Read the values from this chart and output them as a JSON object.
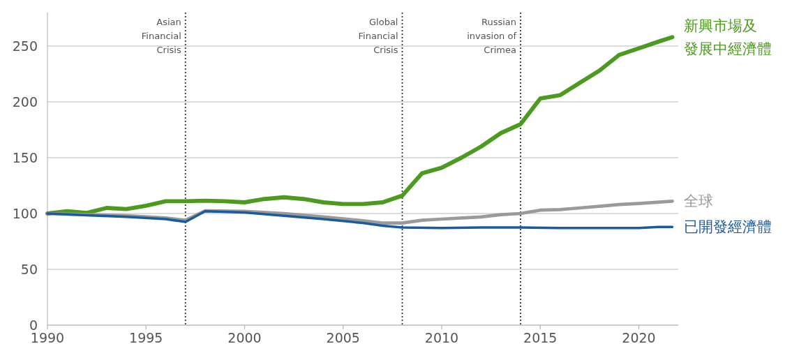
{
  "chart_data": {
    "type": "line",
    "xlim": [
      1990,
      2022
    ],
    "ylim": [
      0,
      280
    ],
    "xticks": [
      1990,
      1995,
      2000,
      2005,
      2010,
      2015,
      2020
    ],
    "yticks": [
      0,
      50,
      100,
      150,
      200,
      250
    ],
    "grid": "y",
    "line_style": "solid",
    "series": [
      {
        "name": "新興市場及發展中經濟體",
        "color": "#4c9a1f",
        "x": [
          1990,
          1991,
          1992,
          1993,
          1994,
          1995,
          1996,
          1997,
          1998,
          1999,
          2000,
          2001,
          2002,
          2003,
          2004,
          2005,
          2006,
          2007,
          2008,
          2009,
          2010,
          2011,
          2012,
          2013,
          2014,
          2015,
          2016,
          2017,
          2018,
          2019,
          2020,
          2021,
          2021.7
        ],
        "values": [
          100,
          102,
          100.5,
          105,
          104,
          107,
          111,
          111,
          111.5,
          111,
          110,
          113,
          114.5,
          113,
          110,
          108.5,
          108.5,
          110,
          116,
          136,
          141,
          150,
          160,
          172,
          180,
          203,
          206,
          217,
          228,
          242,
          248,
          254,
          258
        ]
      },
      {
        "name": "全球",
        "color": "#9a9a9a",
        "x": [
          1990,
          1992,
          1994,
          1996,
          1997,
          1998,
          2000,
          2002,
          2004,
          2006,
          2007,
          2008,
          2009,
          2010,
          2012,
          2013,
          2014,
          2015,
          2016,
          2017,
          2018,
          2019,
          2020,
          2021.7
        ],
        "values": [
          100,
          99,
          98,
          96,
          94,
          102.5,
          102,
          100,
          97,
          93.5,
          91.5,
          91.5,
          94,
          95,
          97,
          99,
          100,
          103,
          103.5,
          105,
          106.5,
          108,
          109,
          111
        ]
      },
      {
        "name": "已開發經濟體",
        "color": "#1a5a9e",
        "x": [
          1990,
          1992,
          1994,
          1996,
          1997,
          1998,
          2000,
          2002,
          2004,
          2006,
          2007,
          2008,
          2010,
          2012,
          2014,
          2016,
          2020,
          2021,
          2021.7
        ],
        "values": [
          100,
          98.5,
          97,
          95,
          92.5,
          102,
          101,
          98,
          95,
          91.5,
          89,
          87.5,
          87,
          87.5,
          87.5,
          87,
          87,
          88,
          88
        ]
      }
    ],
    "ref_lines": [
      {
        "axis": "x",
        "value": 1997,
        "label": "Asian Financial Crisis",
        "line_style": "dotted"
      },
      {
        "axis": "x",
        "value": 2008,
        "label": "Global Financial Crisis",
        "line_style": "dotted"
      },
      {
        "axis": "x",
        "value": 2014,
        "label": "Russian invasion of Crimea",
        "line_style": "dotted"
      }
    ]
  }
}
